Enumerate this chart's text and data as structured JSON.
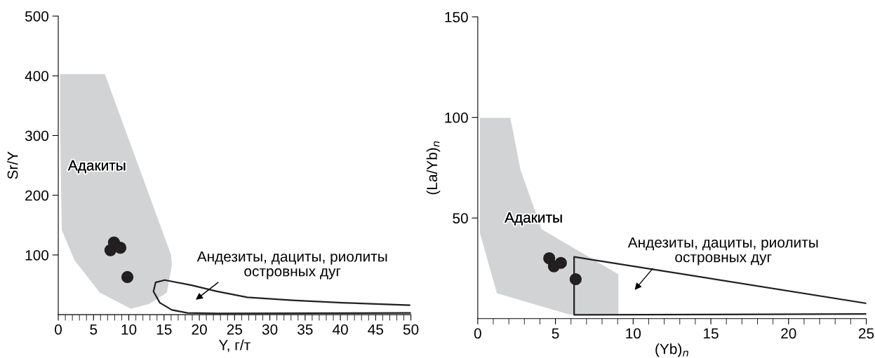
{
  "chart_data": [
    {
      "type": "scatter",
      "xlabel": "Y, г/т",
      "ylabel": "Sr/Y",
      "xlim": [
        0,
        50
      ],
      "ylim": [
        0,
        500
      ],
      "xticks": [
        0,
        5,
        10,
        15,
        20,
        25,
        30,
        35,
        40,
        45,
        50
      ],
      "yticks": [
        100,
        200,
        300,
        400,
        500
      ],
      "grid": false,
      "legend": false,
      "series": [
        {
          "type": "area",
          "color": "#d1d3d4",
          "x": [
            0.25,
            6.6,
            16,
            16.1,
            15.4,
            12.9,
            10.3,
            5.9,
            2.3,
            0.5,
            0.25
          ],
          "values": [
            403,
            403,
            100,
            83,
            37,
            18,
            10,
            37,
            91,
            142,
            318
          ]
        },
        {
          "type": "line",
          "color": "#231f20",
          "x": [
            49.8,
            40.2,
            33.2,
            26.8,
            22.5,
            19,
            15.1,
            13.8,
            13.5,
            14.4,
            16.1,
            18.3,
            22.5,
            50
          ],
          "values": [
            16,
            20,
            24,
            29,
            39,
            49,
            58,
            54,
            39,
            20,
            8,
            3,
            2,
            3
          ]
        },
        {
          "color": "#231f20",
          "marker": "circle",
          "x": [
            7.9,
            7.4,
            8.8,
            9.8
          ],
          "values": [
            121,
            108,
            112,
            63
          ]
        }
      ],
      "annotations": [
        "Адакиты",
        "Андезиты, дациты, риолиты\nостровных дуг"
      ]
    },
    {
      "type": "scatter",
      "xlabel": "(Yb)$_{n}$",
      "ylabel": "(La/Yb)$_{n}$",
      "xlim": [
        0,
        25
      ],
      "ylim": [
        0,
        150
      ],
      "xticks": [
        0,
        5,
        10,
        15,
        20,
        25
      ],
      "yticks": [
        50,
        100,
        150
      ],
      "grid": false,
      "legend": false,
      "series": [
        {
          "type": "area",
          "color": "#d1d3d4",
          "x": [
            0.14,
            2.1,
            2.75,
            4.1,
            9.05,
            9.05,
            5.95,
            1.23,
            0.14
          ],
          "values": [
            99.8,
            99.8,
            74,
            44.5,
            22,
            2.3,
            1.9,
            12.6,
            42.5
          ]
        },
        {
          "type": "line",
          "color": "#231f20",
          "x": [
            25,
            6.2,
            6.2,
            25
          ],
          "values": [
            7.6,
            30.7,
            1.9,
            2.3
          ]
        },
        {
          "color": "#231f20",
          "marker": "circle",
          "x": [
            4.6,
            4.9,
            5.35,
            6.3
          ],
          "values": [
            30,
            26,
            27.7,
            19.6
          ]
        }
      ],
      "annotations": [
        "Адакиты",
        "Андезиты, дациты, риолиты\nостровных дуг"
      ]
    }
  ]
}
